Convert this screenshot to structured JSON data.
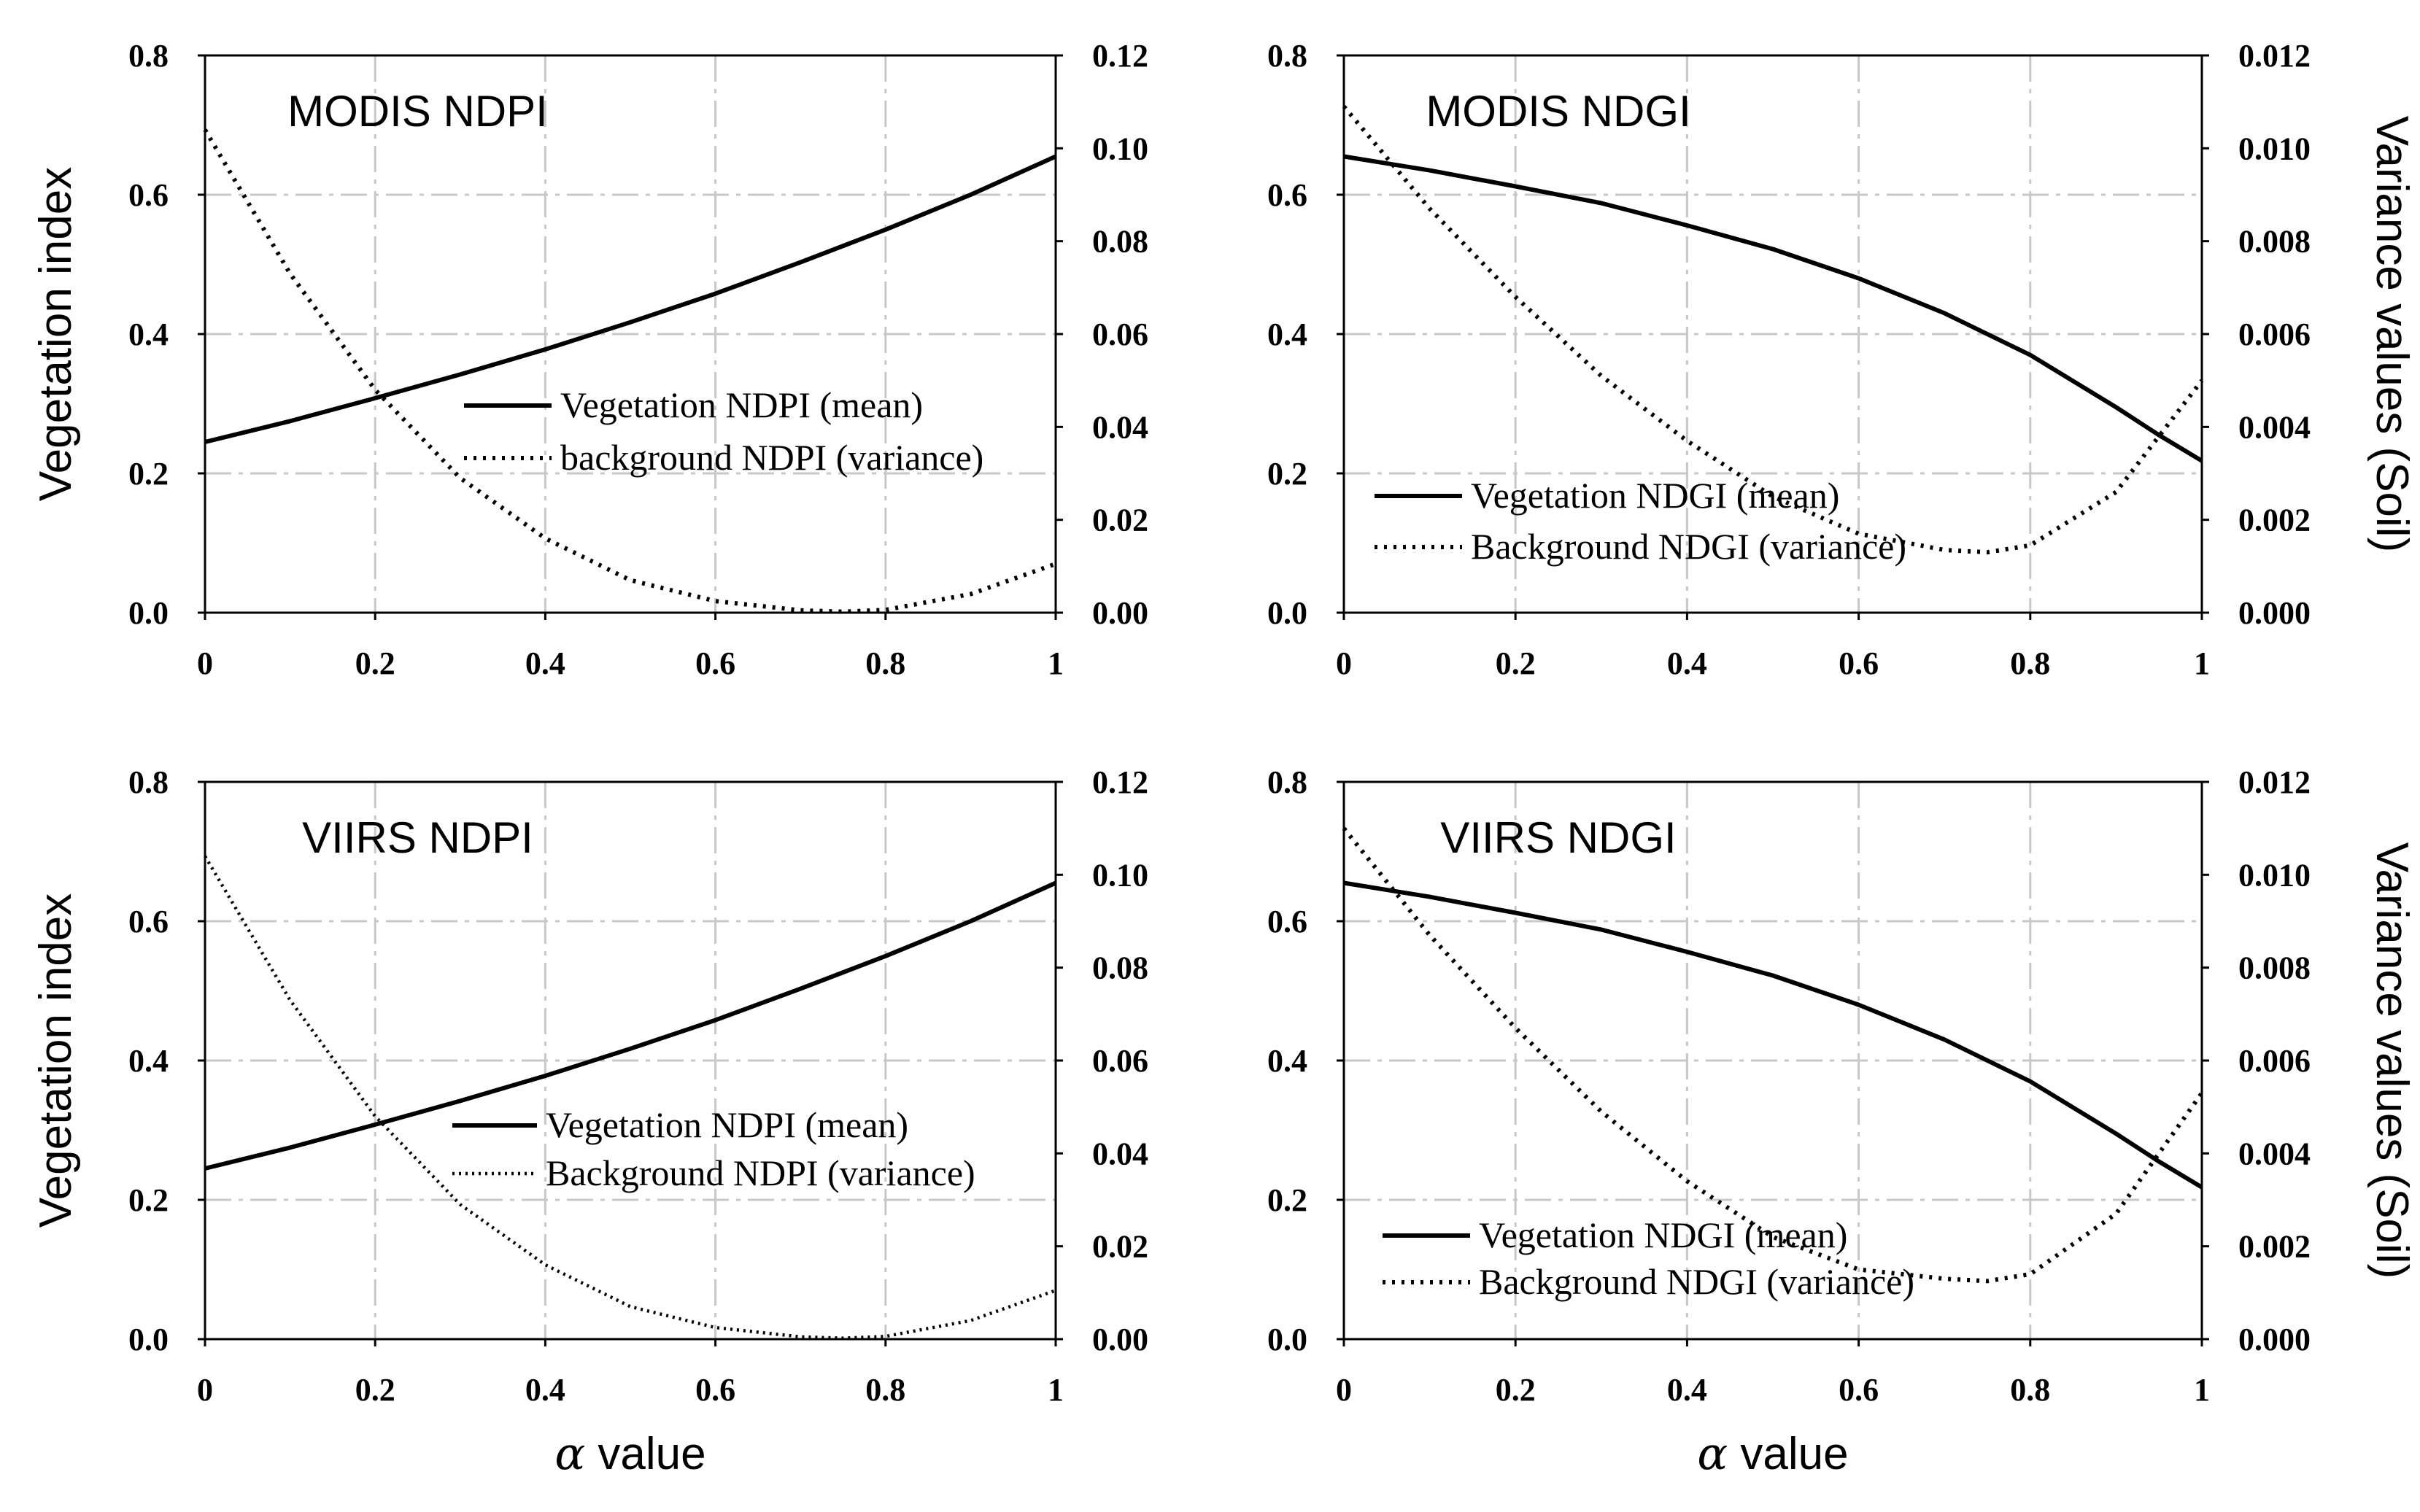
{
  "chart_data": [
    {
      "type": "line",
      "title": "MODIS NDPI",
      "xlabel": "",
      "ylabel": "Vegetation index",
      "y2label": "",
      "xlim": [
        0,
        1
      ],
      "ylim": [
        0,
        0.8
      ],
      "y2lim": [
        0,
        0.12
      ],
      "xticks": [
        "0",
        "0.2",
        "0.4",
        "0.6",
        "0.8",
        "1"
      ],
      "yticks": [
        "0.0",
        "0.2",
        "0.4",
        "0.6",
        "0.8"
      ],
      "y2ticks": [
        "0.00",
        "0.02",
        "0.04",
        "0.06",
        "0.08",
        "0.10",
        "0.12"
      ],
      "grid": true,
      "legend_position": "center-right",
      "series": [
        {
          "name": "Vegetation NDPI (mean)",
          "axis": "left",
          "style": "solid",
          "x": [
            0,
            0.1,
            0.2,
            0.3,
            0.4,
            0.5,
            0.6,
            0.7,
            0.8,
            0.9,
            1.0
          ],
          "values": [
            0.245,
            0.275,
            0.308,
            0.342,
            0.378,
            0.417,
            0.458,
            0.503,
            0.55,
            0.6,
            0.655
          ]
        },
        {
          "name": "background NDPI (variance)",
          "axis": "right",
          "style": "dotted",
          "x": [
            0,
            0.1,
            0.2,
            0.3,
            0.4,
            0.5,
            0.6,
            0.7,
            0.75,
            0.8,
            0.9,
            1.0
          ],
          "values": [
            0.104,
            0.073,
            0.048,
            0.029,
            0.016,
            0.007,
            0.0025,
            0.0005,
            0.0002,
            0.0006,
            0.004,
            0.0105
          ]
        }
      ]
    },
    {
      "type": "line",
      "title": "MODIS NDGI",
      "xlabel": "",
      "ylabel": "",
      "y2label": "Variance values (Soil)",
      "xlim": [
        0,
        1
      ],
      "ylim": [
        0,
        0.8
      ],
      "y2lim": [
        0,
        0.012
      ],
      "xticks": [
        "0",
        "0.2",
        "0.4",
        "0.6",
        "0.8",
        "1"
      ],
      "yticks": [
        "0.0",
        "0.2",
        "0.4",
        "0.6",
        "0.8"
      ],
      "y2ticks": [
        "0.000",
        "0.002",
        "0.004",
        "0.006",
        "0.008",
        "0.010",
        "0.012"
      ],
      "grid": true,
      "legend_position": "bottom-left",
      "series": [
        {
          "name": "Vegetation NDGI (mean)",
          "axis": "left",
          "style": "solid",
          "x": [
            0,
            0.1,
            0.2,
            0.3,
            0.4,
            0.5,
            0.6,
            0.7,
            0.8,
            0.9,
            0.95,
            1.0
          ],
          "values": [
            0.655,
            0.635,
            0.612,
            0.588,
            0.556,
            0.522,
            0.48,
            0.43,
            0.37,
            0.295,
            0.255,
            0.218
          ]
        },
        {
          "name": "Background NDGI (variance)",
          "axis": "right",
          "style": "dotted",
          "x": [
            0,
            0.1,
            0.2,
            0.3,
            0.4,
            0.5,
            0.6,
            0.7,
            0.75,
            0.8,
            0.9,
            1.0
          ],
          "values": [
            0.0109,
            0.0087,
            0.0068,
            0.0051,
            0.0037,
            0.0025,
            0.0017,
            0.00135,
            0.0013,
            0.00145,
            0.0026,
            0.005
          ]
        }
      ]
    },
    {
      "type": "line",
      "title": "VIIRS NDPI",
      "xlabel": "α value",
      "ylabel": "Vegetation index",
      "y2label": "",
      "xlim": [
        0,
        1
      ],
      "ylim": [
        0,
        0.8
      ],
      "y2lim": [
        0,
        0.12
      ],
      "xticks": [
        "0",
        "0.2",
        "0.4",
        "0.6",
        "0.8",
        "1"
      ],
      "yticks": [
        "0.0",
        "0.2",
        "0.4",
        "0.6",
        "0.8"
      ],
      "y2ticks": [
        "0.00",
        "0.02",
        "0.04",
        "0.06",
        "0.08",
        "0.10",
        "0.12"
      ],
      "grid": true,
      "legend_position": "center-right",
      "series": [
        {
          "name": "Vegetation NDPI (mean)",
          "axis": "left",
          "style": "solid",
          "x": [
            0,
            0.1,
            0.2,
            0.3,
            0.4,
            0.5,
            0.6,
            0.7,
            0.8,
            0.9,
            1.0
          ],
          "values": [
            0.245,
            0.275,
            0.308,
            0.342,
            0.378,
            0.417,
            0.458,
            0.503,
            0.55,
            0.6,
            0.655
          ]
        },
        {
          "name": "Background NDPI (variance)",
          "axis": "right",
          "style": "dotted",
          "x": [
            0,
            0.1,
            0.2,
            0.3,
            0.4,
            0.5,
            0.6,
            0.7,
            0.75,
            0.8,
            0.9,
            1.0
          ],
          "values": [
            0.104,
            0.073,
            0.048,
            0.029,
            0.016,
            0.007,
            0.0025,
            0.0005,
            0.0002,
            0.0006,
            0.004,
            0.0105
          ]
        }
      ]
    },
    {
      "type": "line",
      "title": "VIIRS NDGI",
      "xlabel": "α value",
      "ylabel": "",
      "y2label": "Variance values (Soil)",
      "xlim": [
        0,
        1
      ],
      "ylim": [
        0,
        0.8
      ],
      "y2lim": [
        0,
        0.012
      ],
      "xticks": [
        "0",
        "0.2",
        "0.4",
        "0.6",
        "0.8",
        "1"
      ],
      "yticks": [
        "0.0",
        "0.2",
        "0.4",
        "0.6",
        "0.8"
      ],
      "y2ticks": [
        "0.000",
        "0.002",
        "0.004",
        "0.006",
        "0.008",
        "0.010",
        "0.012"
      ],
      "grid": true,
      "legend_position": "bottom-left",
      "series": [
        {
          "name": "Vegetation NDGI (mean)",
          "axis": "left",
          "style": "solid",
          "x": [
            0,
            0.1,
            0.2,
            0.3,
            0.4,
            0.5,
            0.6,
            0.7,
            0.8,
            0.9,
            0.95,
            1.0
          ],
          "values": [
            0.655,
            0.635,
            0.612,
            0.588,
            0.556,
            0.522,
            0.48,
            0.43,
            0.37,
            0.295,
            0.255,
            0.218
          ]
        },
        {
          "name": "Background NDGI (variance)",
          "axis": "right",
          "style": "dotted",
          "x": [
            0,
            0.1,
            0.2,
            0.3,
            0.4,
            0.5,
            0.6,
            0.7,
            0.75,
            0.8,
            0.9,
            1.0
          ],
          "values": [
            0.011,
            0.0087,
            0.0067,
            0.0049,
            0.0034,
            0.0022,
            0.0015,
            0.0013,
            0.00125,
            0.0014,
            0.0027,
            0.0053
          ]
        }
      ]
    }
  ]
}
